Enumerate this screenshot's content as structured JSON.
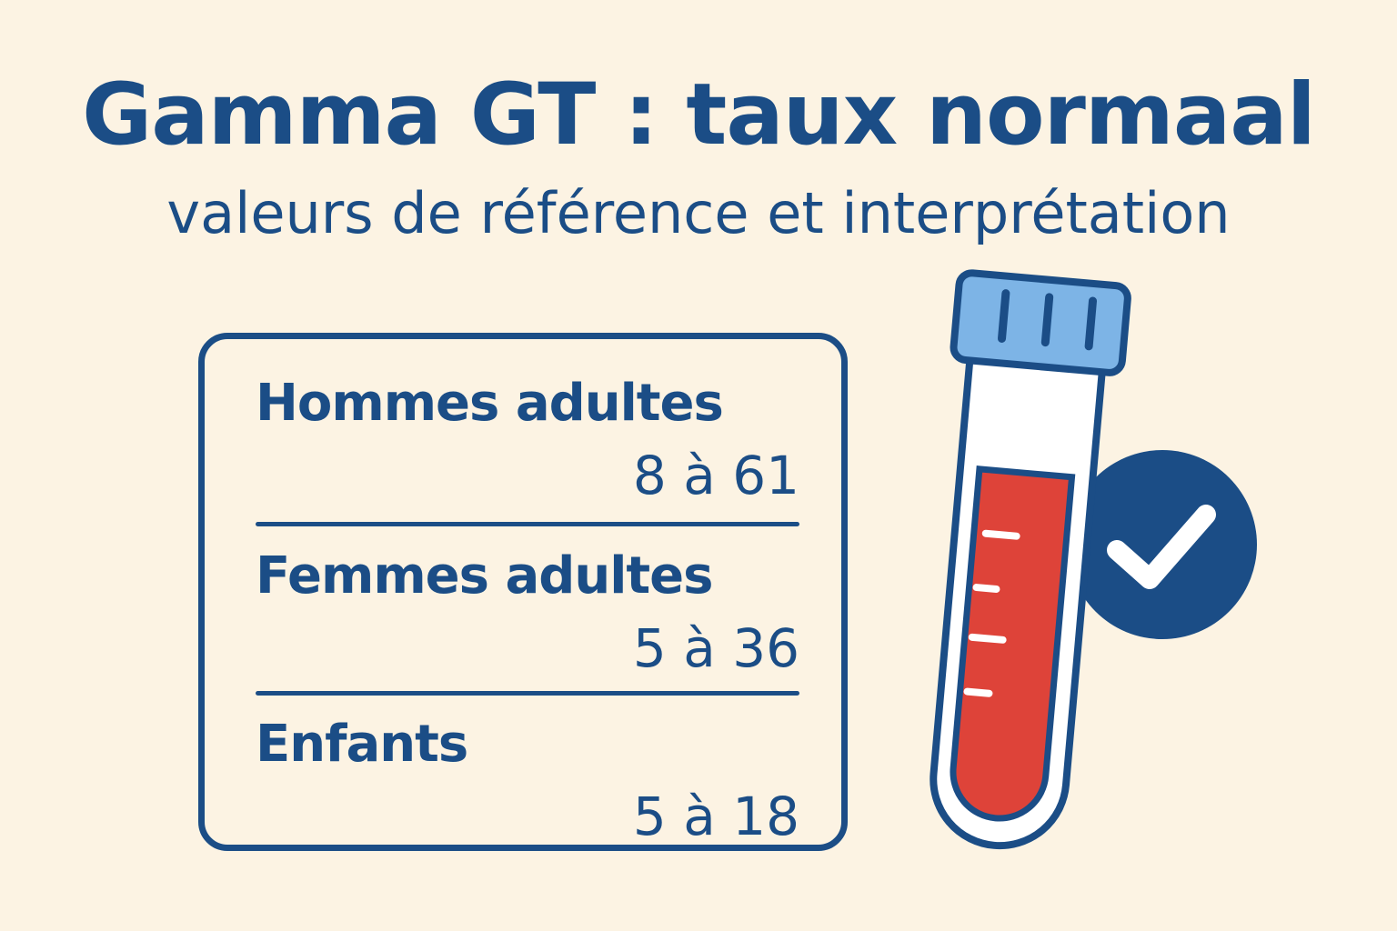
{
  "header": {
    "title": "Gamma GT : taux normaal",
    "subtitle": "valeurs de référence et interprétation"
  },
  "reference_table": {
    "rows": [
      {
        "label": "Hommes adultes",
        "value": "8 à 61"
      },
      {
        "label": "Femmes adultes",
        "value": "5 à 36"
      },
      {
        "label": "Enfants",
        "value": "5 à 18"
      }
    ]
  },
  "illustration": {
    "icons": [
      "blood-test-tube-icon",
      "checkmark-circle-icon"
    ],
    "colors": {
      "primary": "#1b4d86",
      "cap": "#7db4e6",
      "blood": "#de4339",
      "background": "#fcf3e3"
    }
  }
}
